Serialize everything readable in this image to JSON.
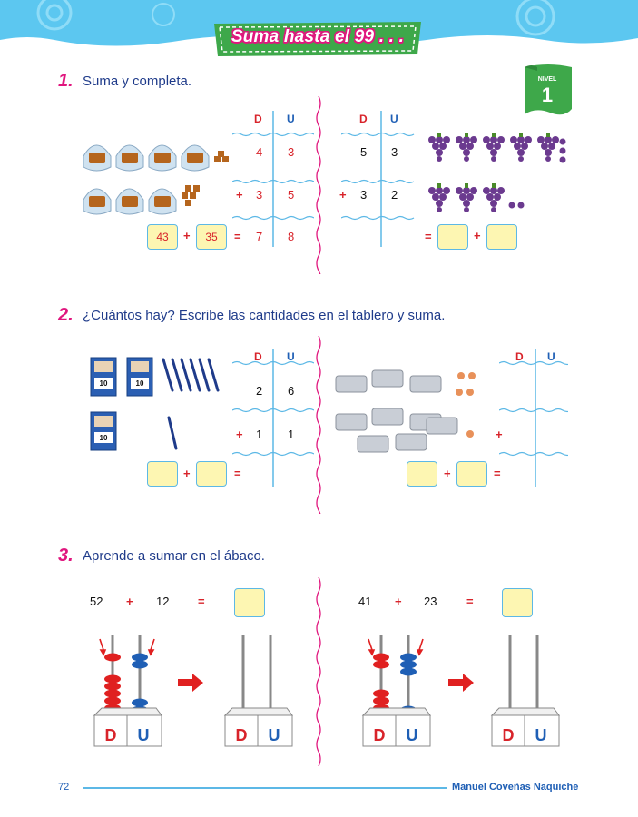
{
  "title": "Suma hasta el 99 . . .",
  "level": {
    "word": "NIVEL",
    "number": "1"
  },
  "section1": {
    "number": "1.",
    "instruction": "Suma y completa.",
    "left_table": {
      "head_d": "D",
      "head_u": "U",
      "row1": {
        "d": "4",
        "u": "3"
      },
      "row2": {
        "op": "+",
        "d": "3",
        "u": "5"
      },
      "row3": {
        "op": "=",
        "d": "7",
        "u": "8"
      },
      "box1": "43",
      "plus": "+",
      "box2": "35"
    },
    "right_table": {
      "head_d": "D",
      "head_u": "U",
      "row1": {
        "d": "5",
        "u": "3"
      },
      "row2": {
        "op": "+",
        "d": "3",
        "u": "2"
      },
      "eq": "=",
      "plus": "+"
    }
  },
  "section2": {
    "number": "2.",
    "instruction": "¿Cuántos hay? Escribe las cantidades en el tablero y suma.",
    "box_label": "10",
    "left_table": {
      "head_d": "D",
      "head_u": "U",
      "row1": {
        "d": "2",
        "u": "6"
      },
      "row2": {
        "op": "+",
        "d": "1",
        "u": "1"
      },
      "plus": "+",
      "eq": "="
    },
    "right_table": {
      "head_d": "D",
      "head_u": "U",
      "op": "+",
      "plus": "+",
      "eq": "="
    }
  },
  "section3": {
    "number": "3.",
    "instruction": "Aprende a sumar en el ábaco.",
    "left": {
      "a": "52",
      "plus": "+",
      "b": "12",
      "eq": "="
    },
    "right": {
      "a": "41",
      "plus": "+",
      "b": "23",
      "eq": "="
    },
    "abacus_d": "D",
    "abacus_u": "U"
  },
  "footer": {
    "page": "72",
    "author": "Manuel Coveñas Naquiche"
  },
  "colors": {
    "pink": "#e0167e",
    "blue": "#1f5fb5",
    "red": "#d8232a",
    "sky": "#5cc7f0",
    "green": "#3ea84a"
  }
}
